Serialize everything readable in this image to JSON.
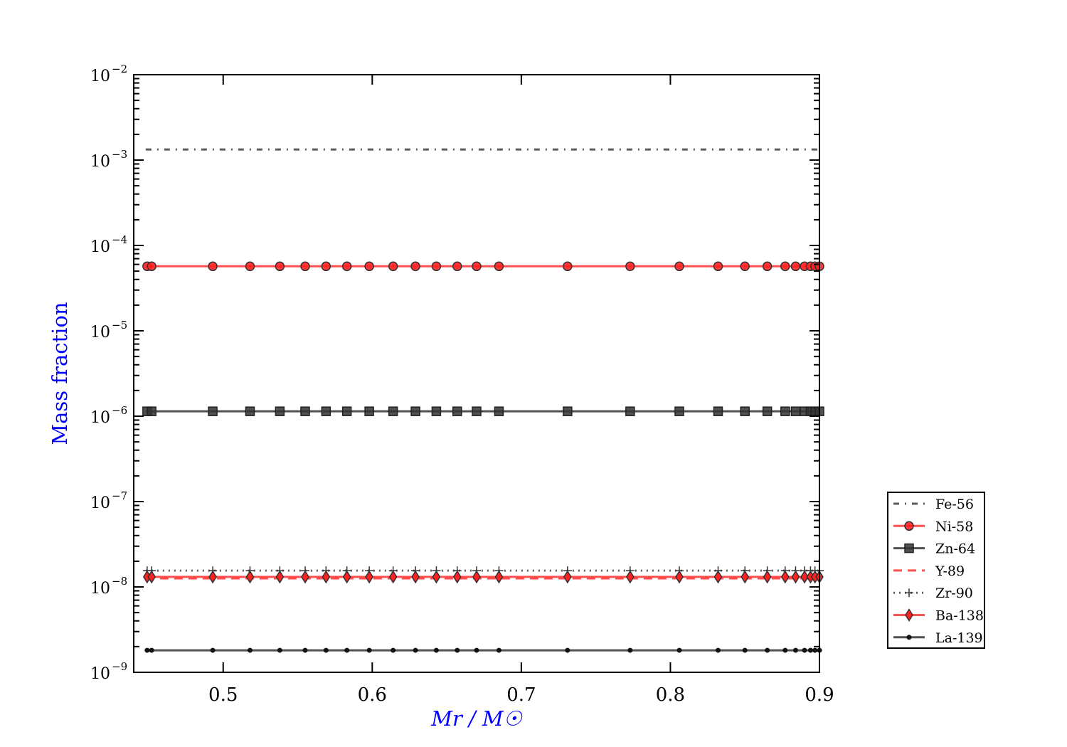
{
  "chart_data": {
    "type": "line",
    "title": "",
    "xlabel": "Mr / M☉",
    "ylabel": "Mass fraction",
    "xlim": [
      0.44,
      0.9
    ],
    "ylim": [
      1e-09,
      0.01
    ],
    "yscale": "log",
    "grid": false,
    "legend_position": "outside-right-bottom",
    "xticks": [
      "0.5",
      "0.6",
      "0.7",
      "0.8",
      "0.9"
    ],
    "yticks": [
      "-2",
      "-3",
      "-4",
      "-5",
      "-6",
      "-7",
      "-8",
      "-9"
    ],
    "ytick_base": "10",
    "label_color": "#0000ff",
    "x": [
      0.449,
      0.452,
      0.493,
      0.518,
      0.538,
      0.555,
      0.569,
      0.583,
      0.598,
      0.614,
      0.629,
      0.643,
      0.657,
      0.67,
      0.685,
      0.731,
      0.773,
      0.806,
      0.832,
      0.85,
      0.865,
      0.877,
      0.884,
      0.89,
      0.894,
      0.897,
      0.9
    ],
    "series": [
      {
        "name": "Fe-56",
        "value": 0.00133,
        "color": "#404040",
        "linestyle": "dashdot",
        "marker": "none"
      },
      {
        "name": "Ni-58",
        "value": 5.7e-05,
        "color": "#ff3333",
        "linestyle": "solid",
        "marker": "circle"
      },
      {
        "name": "Zn-64",
        "value": 1.14e-06,
        "color": "#333333",
        "linestyle": "solid",
        "marker": "square"
      },
      {
        "name": "Y-89",
        "value": 1.26e-08,
        "color": "#ff3333",
        "linestyle": "dashed",
        "marker": "none"
      },
      {
        "name": "Zr-90",
        "value": 1.55e-08,
        "color": "#404040",
        "linestyle": "dotted",
        "marker": "plus"
      },
      {
        "name": "Ba-138",
        "value": 1.31e-08,
        "color": "#ff3333",
        "linestyle": "solid",
        "marker": "diamond"
      },
      {
        "name": "La-139",
        "value": 1.81e-09,
        "color": "#333333",
        "linestyle": "solid",
        "marker": "dot"
      }
    ]
  }
}
